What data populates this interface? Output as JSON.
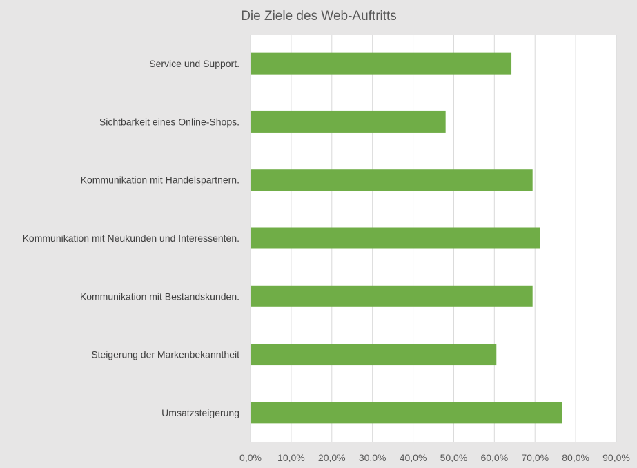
{
  "chart_data": {
    "type": "bar",
    "orientation": "horizontal",
    "title": "Die Ziele des Web-Auftritts",
    "xlabel": "",
    "ylabel": "",
    "categories": [
      "Service und Support.",
      "Sichtbarkeit eines Online-Shops.",
      "Kommunikation mit Handelspartnern.",
      "Kommunikation mit Neukunden und Interessenten.",
      "Kommunikation mit Bestandskunden.",
      "Steigerung der Markenbekanntheit",
      "Umsatzsteigerung"
    ],
    "values": [
      0.642,
      0.48,
      0.694,
      0.712,
      0.694,
      0.605,
      0.766
    ],
    "xlim": [
      0,
      0.9
    ],
    "xticks": [
      0,
      0.1,
      0.2,
      0.3,
      0.4,
      0.5,
      0.6,
      0.7,
      0.8,
      0.9
    ],
    "xtick_labels": [
      "0,0%",
      "10,0%",
      "20,0%",
      "30,0%",
      "40,0%",
      "50,0%",
      "60,0%",
      "70,0%",
      "80,0%",
      "90,0%"
    ],
    "grid": true,
    "legend": "none",
    "bar_color": "#70ad47",
    "gridline_color": "#d9d9d9",
    "background_color": "#e7e6e6",
    "plot_background_color": "#ffffff"
  }
}
